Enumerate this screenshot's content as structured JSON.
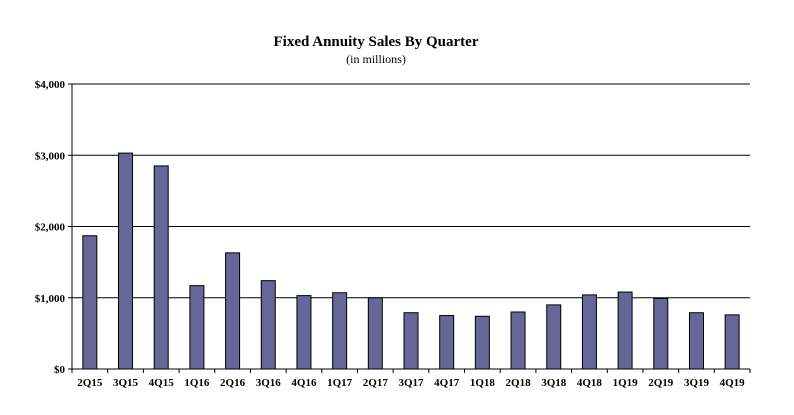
{
  "chart_data": {
    "type": "bar",
    "title": "Fixed Annuity Sales By Quarter",
    "subtitle": "(in millions)",
    "xlabel": "",
    "ylabel": "",
    "categories": [
      "2Q15",
      "3Q15",
      "4Q15",
      "1Q16",
      "2Q16",
      "3Q16",
      "4Q16",
      "1Q17",
      "2Q17",
      "3Q17",
      "4Q17",
      "1Q18",
      "2Q18",
      "3Q18",
      "4Q18",
      "1Q19",
      "2Q19",
      "3Q19",
      "4Q19"
    ],
    "values": [
      1870,
      3030,
      2850,
      1170,
      1630,
      1240,
      1030,
      1070,
      1000,
      790,
      750,
      740,
      800,
      900,
      1040,
      1080,
      990,
      790,
      760
    ],
    "ylim": [
      0,
      4000
    ],
    "yticks": [
      0,
      1000,
      2000,
      3000,
      4000
    ],
    "ytick_labels": [
      "$0",
      "$1,000",
      "$2,000",
      "$3,000",
      "$4,000"
    ],
    "grid": true,
    "legend": "none",
    "colors": {
      "bar_fill": "#666699",
      "bar_stroke": "#000000",
      "gridline": "#000000"
    }
  }
}
